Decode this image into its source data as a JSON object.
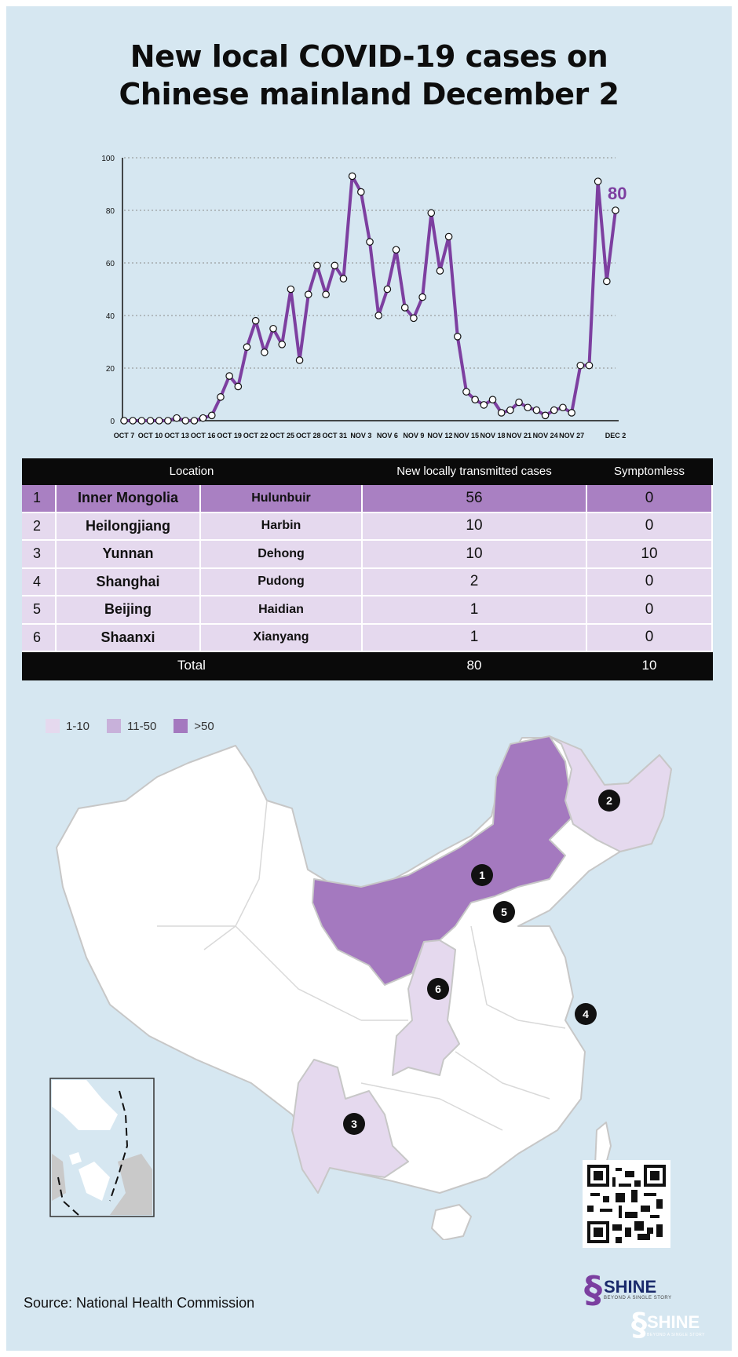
{
  "title": {
    "line1": "New local COVID-19 cases on",
    "line2": "Chinese mainland  December 2"
  },
  "chart_data": {
    "type": "line",
    "title": "New local COVID-19 cases on Chinese mainland  December 2",
    "xlabel": "",
    "ylabel": "",
    "ylim": [
      0,
      100
    ],
    "yticks": [
      0,
      20,
      40,
      60,
      80,
      100
    ],
    "grid": "horizontal-dotted",
    "color": "#7d3fa0",
    "x_tick_labels": [
      "OCT 7",
      "OCT 10",
      "OCT 13",
      "OCT 16",
      "OCT 19",
      "OCT 22",
      "OCT 25",
      "OCT 28",
      "OCT 31",
      "NOV 3",
      "NOV 6",
      "NOV 9",
      "NOV 12",
      "NOV 15",
      "NOV 18",
      "NOV 21",
      "NOV 24",
      "NOV 27",
      "DEC 2"
    ],
    "x_tick_days": [
      0,
      3,
      6,
      9,
      12,
      15,
      18,
      21,
      24,
      27,
      30,
      33,
      36,
      39,
      42,
      45,
      48,
      51,
      56
    ],
    "values": [
      0,
      0,
      0,
      0,
      0,
      0,
      1,
      0,
      0,
      1,
      2,
      9,
      17,
      13,
      28,
      38,
      26,
      35,
      29,
      50,
      23,
      48,
      59,
      48,
      59,
      54,
      93,
      87,
      68,
      40,
      50,
      65,
      43,
      39,
      47,
      79,
      57,
      70,
      32,
      11,
      8,
      6,
      8,
      3,
      4,
      7,
      5,
      4,
      2,
      4,
      5,
      3,
      21,
      21,
      91,
      53,
      80
    ],
    "last_value_label": "80"
  },
  "table": {
    "headers": [
      "Location",
      "New locally transmitted cases",
      "Symptomless"
    ],
    "rows": [
      {
        "rank": "1",
        "province": "Inner Mongolia",
        "city": "Hulunbuir",
        "cases": "56",
        "symptomless": "0"
      },
      {
        "rank": "2",
        "province": "Heilongjiang",
        "city": "Harbin",
        "cases": "10",
        "symptomless": "0"
      },
      {
        "rank": "3",
        "province": "Yunnan",
        "city": "Dehong",
        "cases": "10",
        "symptomless": "10"
      },
      {
        "rank": "4",
        "province": "Shanghai",
        "city": "Pudong",
        "cases": "2",
        "symptomless": "0"
      },
      {
        "rank": "5",
        "province": "Beijing",
        "city": "Haidian",
        "cases": "1",
        "symptomless": "0"
      },
      {
        "rank": "6",
        "province": "Shaanxi",
        "city": "Xianyang",
        "cases": "1",
        "symptomless": "0"
      }
    ],
    "total": {
      "label": "Total",
      "cases": "80",
      "symptomless": "10"
    }
  },
  "legend": [
    {
      "label": "1-10",
      "color": "#e5d9ee"
    },
    {
      "label": "11-50",
      "color": "#c8b1da"
    },
    {
      "label": ">50",
      "color": "#a479bf"
    }
  ],
  "map_markers": [
    "1",
    "2",
    "3",
    "4",
    "5",
    "6"
  ],
  "source": "Source: National Health Commission",
  "brand": {
    "name": "SHINE",
    "tagline": "BEYOND A SINGLE STORY"
  }
}
